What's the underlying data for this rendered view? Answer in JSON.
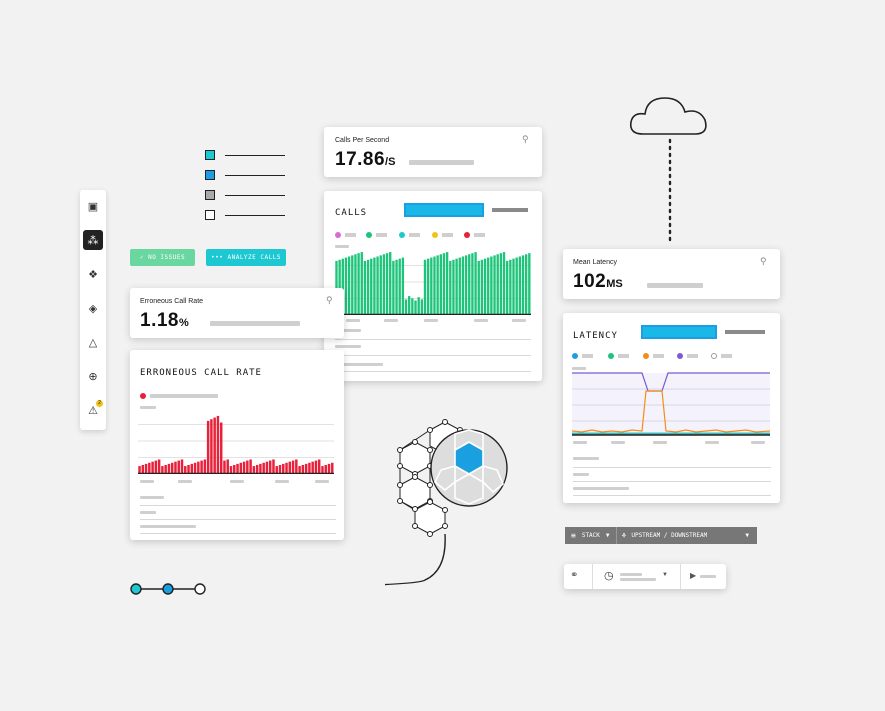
{
  "sidebar": {
    "items": [
      {
        "icon": "window-icon",
        "glyph": "▣"
      },
      {
        "icon": "topology-icon",
        "glyph": "⁂"
      },
      {
        "icon": "nodes-icon",
        "glyph": "❖"
      },
      {
        "icon": "layers-icon",
        "glyph": "◈"
      },
      {
        "icon": "triangle-icon",
        "glyph": "△"
      },
      {
        "icon": "search-icon",
        "glyph": "⊕"
      },
      {
        "icon": "warning-icon",
        "glyph": "⚠",
        "badge": "2"
      }
    ]
  },
  "buttons": {
    "no_issues": "✓  NO ISSUES",
    "analyze_calls": "••• ANALYZE CALLS"
  },
  "cards": {
    "calls_per_second": {
      "title": "Calls Per Second",
      "value": "17.86",
      "unit": "/S"
    },
    "calls_chart": {
      "title": "CALLS"
    },
    "erroneous_call_rate": {
      "title": "Erroneous Call Rate",
      "value": "1.18",
      "unit": "%"
    },
    "erroneous_chart": {
      "title": "ERRONEOUS CALL RATE"
    },
    "mean_latency": {
      "title": "Mean Latency",
      "value": "102",
      "unit": "MS"
    },
    "latency_chart": {
      "title": "LATENCY"
    }
  },
  "toolbar": {
    "stack_label": "STACK",
    "upstream_label": "UPSTREAM / DOWNSTREAM"
  },
  "colors": {
    "green": "#1ec47a",
    "red": "#e8203a",
    "teal": "#1ec8d2",
    "blue": "#1aa0e0",
    "purple": "#7b5ad6",
    "orange": "#f48c1a",
    "magenta": "#d36cd6",
    "yellow": "#f2c21a"
  }
}
